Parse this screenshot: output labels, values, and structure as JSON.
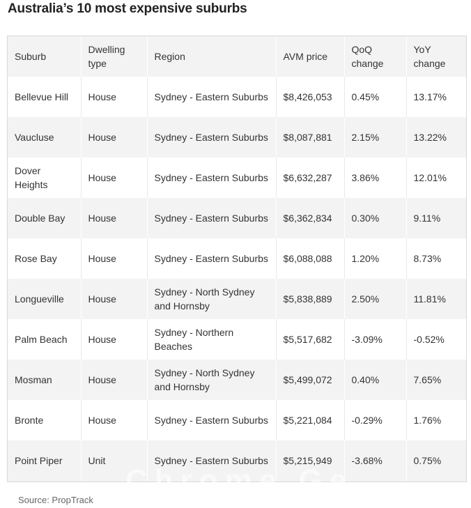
{
  "title": "Australia’s 10 most expensive suburbs",
  "table": {
    "headers": [
      "Suburb",
      "Dwelling type",
      "Region",
      "AVM price",
      "QoQ change",
      "YoY change"
    ],
    "rows": [
      [
        "Bellevue Hill",
        "House",
        "Sydney - Eastern Suburbs",
        "$8,426,053",
        "0.45%",
        "13.17%"
      ],
      [
        "Vaucluse",
        "House",
        "Sydney - Eastern Suburbs",
        "$8,087,881",
        "2.15%",
        "13.22%"
      ],
      [
        "Dover Heights",
        "House",
        "Sydney - Eastern Suburbs",
        "$6,632,287",
        "3.86%",
        "12.01%"
      ],
      [
        "Double Bay",
        "House",
        "Sydney - Eastern Suburbs",
        "$6,362,834",
        "0.30%",
        "9.11%"
      ],
      [
        "Rose Bay",
        "House",
        "Sydney - Eastern Suburbs",
        "$6,088,088",
        "1.20%",
        "8.73%"
      ],
      [
        "Longueville",
        "House",
        "Sydney - North Sydney and Hornsby",
        "$5,838,889",
        "2.50%",
        "11.81%"
      ],
      [
        "Palm Beach",
        "House",
        "Sydney - Northern Beaches",
        "$5,517,682",
        "-3.09%",
        "-0.52%"
      ],
      [
        "Mosman",
        "House",
        "Sydney - North Sydney and Hornsby",
        "$5,499,072",
        "0.40%",
        "7.65%"
      ],
      [
        "Bronte",
        "House",
        "Sydney - Eastern Suburbs",
        "$5,221,084",
        "-0.29%",
        "1.76%"
      ],
      [
        "Point Piper",
        "Unit",
        "Sydney - Eastern Suburbs",
        "$5,215,949",
        "-3.68%",
        "0.75%"
      ]
    ]
  },
  "source": "Source: PropTrack",
  "watermark": "Chrome Gen"
}
